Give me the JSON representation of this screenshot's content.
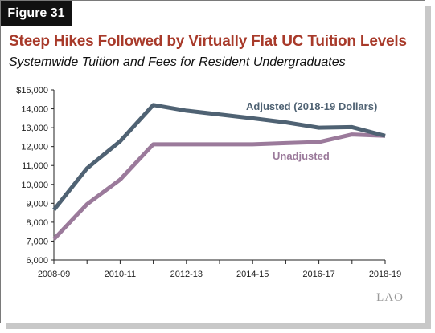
{
  "figure_label": "Figure 31",
  "logo_text": "LAO",
  "chart_data": {
    "type": "line",
    "title": "Steep Hikes Followed by Virtually Flat UC Tuition Levels",
    "subtitle": "Systemwide Tuition and Fees for Resident Undergraduates",
    "xlabel": "",
    "ylabel": "",
    "x": [
      "2008-09",
      "2009-10",
      "2010-11",
      "2011-12",
      "2012-13",
      "2013-14",
      "2014-15",
      "2015-16",
      "2016-17",
      "2017-18",
      "2018-19"
    ],
    "x_tick_labels": [
      "2008-09",
      "2010-11",
      "2012-13",
      "2014-15",
      "2016-17",
      "2018-19"
    ],
    "y_tick_labels": [
      "$15,000",
      "14,000",
      "13,000",
      "12,000",
      "11,000",
      "10,000",
      "9,000",
      "8,000",
      "7,000",
      "6,000"
    ],
    "ylim": [
      6000,
      15000
    ],
    "grid": false,
    "series": [
      {
        "name": "Adjusted (2018-19 Dollars)",
        "color": "#4f6273",
        "values": [
          8650,
          10850,
          12280,
          14200,
          13900,
          13700,
          13500,
          13280,
          13000,
          13030,
          12570
        ]
      },
      {
        "name": "Unadjusted",
        "color": "#9b7a9b",
        "values": [
          7100,
          8950,
          10250,
          12120,
          12120,
          12120,
          12120,
          12180,
          12240,
          12640,
          12570
        ]
      }
    ]
  }
}
